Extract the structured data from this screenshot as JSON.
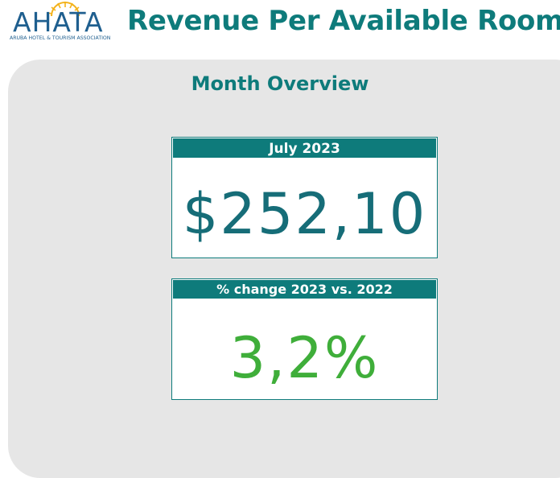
{
  "logo": {
    "wordmark": "AHATA",
    "subtitle": "ARUBA HOTEL & TOURISM ASSOCIATION",
    "icon": "sun-icon",
    "brand_color": "#1f5f8f",
    "sun_color": "#f3b21a"
  },
  "page": {
    "title": "Revenue Per Available Room",
    "section_title": "Month Overview"
  },
  "cards": [
    {
      "label": "July 2023",
      "value": "$252,10",
      "value_color": "#166d78"
    },
    {
      "label": "% change 2023 vs. 2022",
      "value": "3,2%",
      "value_color": "#3fae3a"
    }
  ],
  "colors": {
    "accent": "#0e7b7b",
    "panel_bg": "#e6e6e6"
  }
}
